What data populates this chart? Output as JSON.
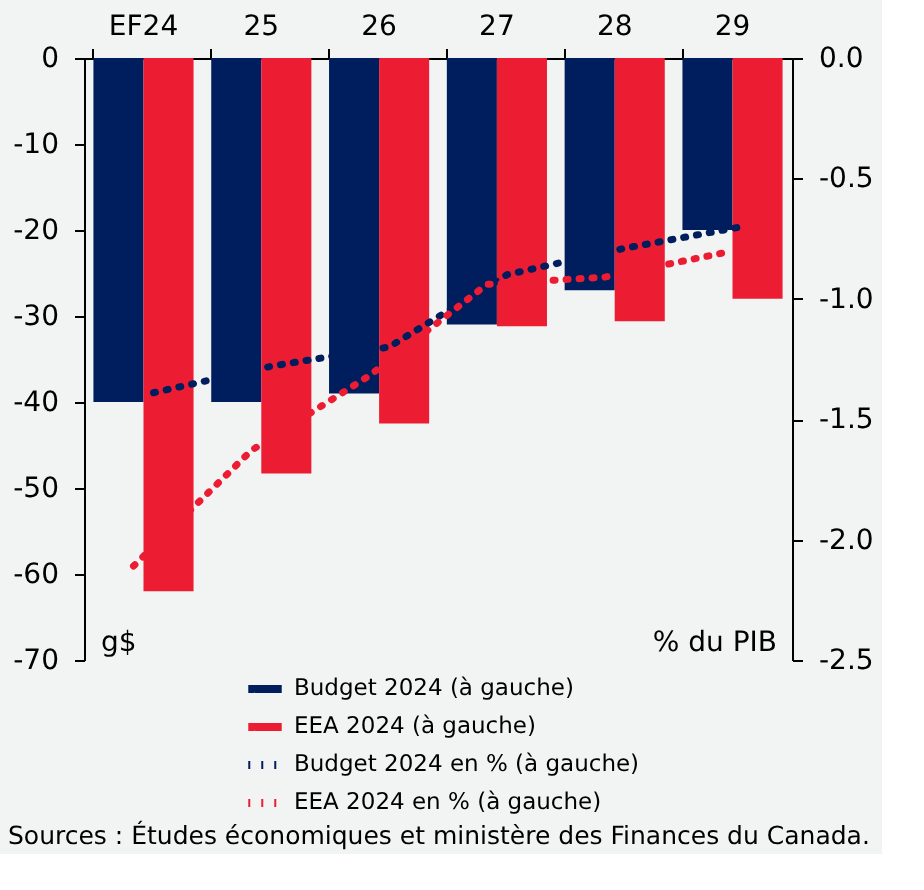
{
  "chart_data": {
    "type": "bar",
    "categories": [
      "EF24",
      "25",
      "26",
      "27",
      "28",
      "29"
    ],
    "ylabel": "g$",
    "y2label": "% du PIB",
    "ylim": [
      -70,
      0
    ],
    "yticks": [
      -70,
      -60,
      -50,
      -40,
      -30,
      -20,
      -10,
      0
    ],
    "y2lim": [
      -2.5,
      0
    ],
    "y2ticks": [
      {
        "value": -2.5,
        "label": "-2.5"
      },
      {
        "value": -2,
        "label": "-2.0"
      },
      {
        "value": -1.5,
        "label": "-1.5"
      },
      {
        "value": -1,
        "label": "-1.0"
      },
      {
        "value": -0.5,
        "label": "-0.5"
      },
      {
        "value": 0,
        "label": "0.0"
      }
    ],
    "series": [
      {
        "name": "Budget 2024 (à gauche)",
        "color": "#001e5e",
        "values": [
          -40,
          -40,
          -39,
          -31,
          -27,
          -20
        ]
      },
      {
        "name": "EEA 2024 (à gauche)",
        "color": "#ec1d33",
        "values": [
          -62,
          -48.3,
          -42.5,
          -31.2,
          -30.6,
          -28
        ]
      },
      {
        "name": "Budget 2024 en % (à gauche)",
        "type": "line",
        "axis": "y2",
        "line_style": "dotted",
        "color": "#001e5e",
        "values": [
          -1.39,
          -1.28,
          -1.2,
          -0.9,
          -0.79,
          -0.7
        ]
      },
      {
        "name": "EEA 2024 en % (à gauche)",
        "type": "line",
        "axis": "y2",
        "line_style": "dotted",
        "color": "#ec1d33",
        "values": [
          -2.11,
          -1.63,
          -1.32,
          -0.94,
          -0.91,
          -0.81
        ]
      }
    ],
    "grid": false,
    "legend": "bottom",
    "annotations": [
      "Sources : Études économiques et ministère des Finances du Canada."
    ]
  }
}
